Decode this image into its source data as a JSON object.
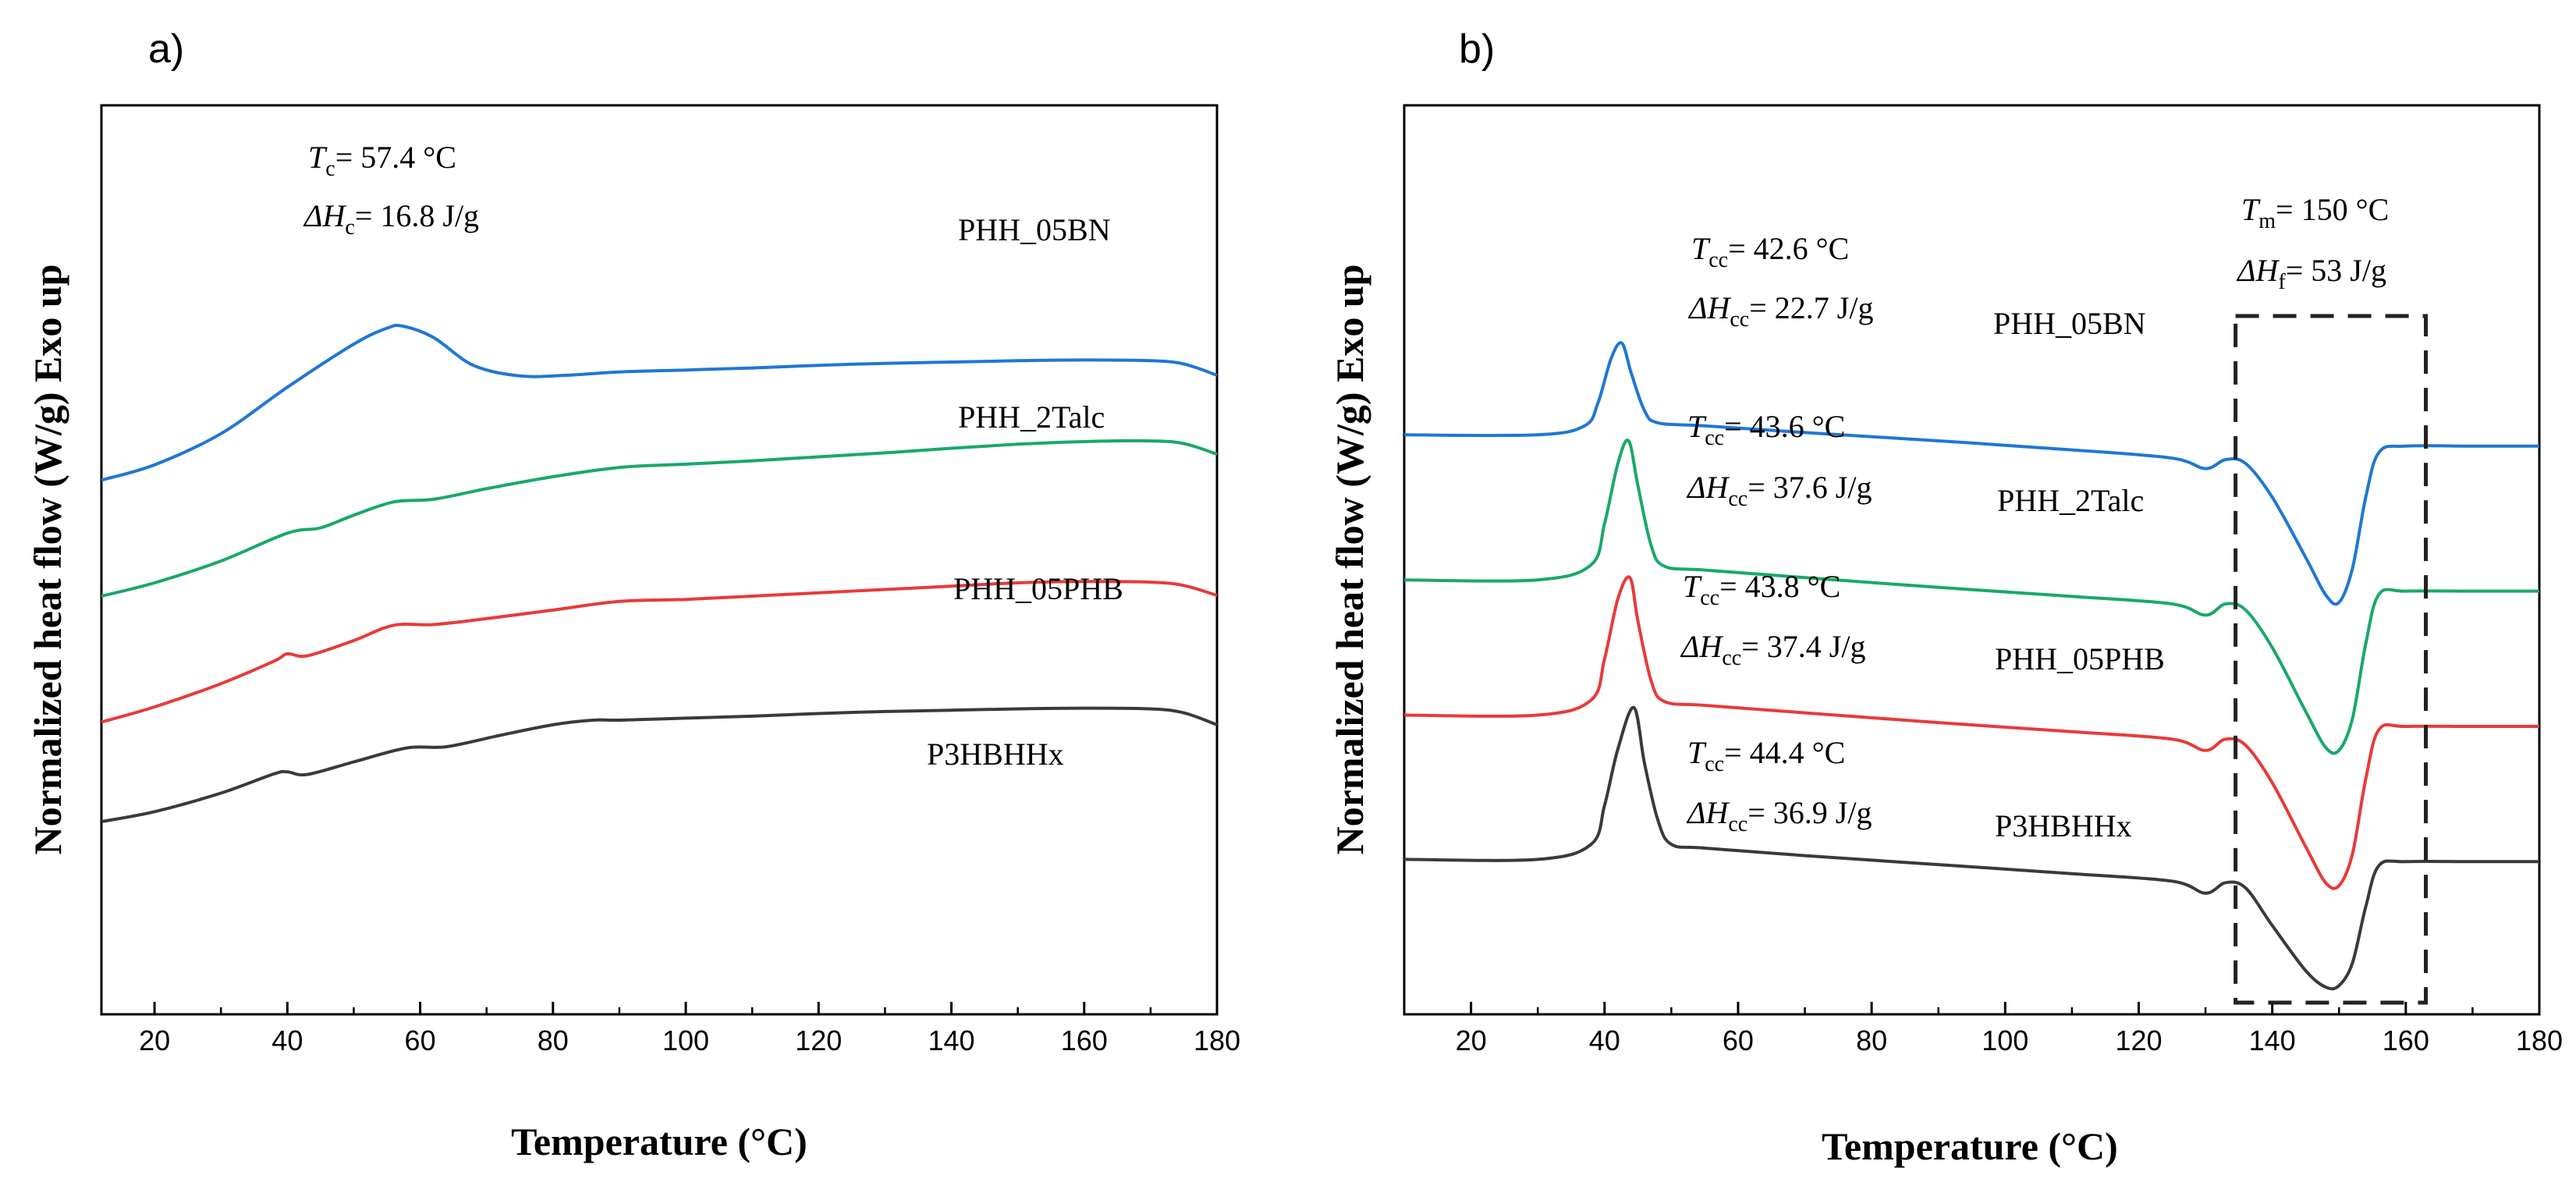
{
  "chart_data": [
    {
      "type": "line",
      "panel": "a)",
      "title": "",
      "xlabel": "Temperature (°C)",
      "ylabel": "Normalized heat flow (W/g) Exo up",
      "xlim": [
        12,
        180
      ],
      "ylim": [
        0,
        100
      ],
      "xticks": [
        20,
        40,
        60,
        80,
        100,
        120,
        140,
        160,
        180
      ],
      "xtick_labels": [
        "20",
        "40",
        "60",
        "80",
        "100",
        "120",
        "140",
        "160",
        "180"
      ],
      "y_ticks_shown": false,
      "grid": false,
      "series": [
        {
          "name": "PHH_05BN",
          "color": "#1f77d4",
          "x": [
            12,
            20,
            30,
            40,
            50,
            55,
            57.4,
            62,
            68,
            75,
            82,
            90,
            100,
            110,
            120,
            130,
            140,
            150,
            160,
            170,
            175,
            180
          ],
          "y": [
            63.5,
            65.8,
            70.5,
            77.5,
            84,
            86.4,
            86.7,
            85,
            80.8,
            79.2,
            79.3,
            79.8,
            80.1,
            80.4,
            80.8,
            81.1,
            81.3,
            81.5,
            81.6,
            81.5,
            81,
            79.3
          ]
        },
        {
          "name": "PHH_2Talc",
          "color": "#1aa86a",
          "x": [
            12,
            20,
            30,
            40,
            45,
            50,
            56,
            62,
            70,
            80,
            90,
            100,
            110,
            120,
            130,
            140,
            150,
            160,
            170,
            175,
            180
          ],
          "y": [
            46,
            48,
            51.3,
            55.5,
            56.3,
            58.2,
            60.2,
            60.6,
            62.2,
            64,
            65.4,
            65.9,
            66.4,
            67,
            67.6,
            68.3,
            68.9,
            69.3,
            69.4,
            69,
            67.4
          ]
        },
        {
          "name": "PHH_05PHB",
          "color": "#e83a3a",
          "x": [
            12,
            20,
            30,
            38,
            40,
            43,
            50,
            56,
            62,
            70,
            80,
            90,
            100,
            110,
            120,
            130,
            140,
            150,
            160,
            170,
            175,
            180
          ],
          "y": [
            27,
            29.3,
            32.8,
            36.2,
            37.3,
            37,
            39.3,
            41.6,
            41.7,
            42.6,
            43.9,
            45.2,
            45.5,
            46,
            46.5,
            47,
            47.5,
            48,
            48.2,
            48.1,
            47.6,
            46.1
          ]
        },
        {
          "name": "P3HBHHx",
          "color": "#3a3a3a",
          "x": [
            12,
            20,
            30,
            38,
            40,
            43,
            50,
            58,
            64,
            72,
            80,
            86,
            90,
            100,
            110,
            120,
            130,
            140,
            150,
            160,
            170,
            175,
            180
          ],
          "y": [
            12,
            13.5,
            16.3,
            19.2,
            19.5,
            19.1,
            21,
            23.1,
            23.3,
            25,
            26.6,
            27.3,
            27.3,
            27.6,
            27.9,
            28.3,
            28.6,
            28.8,
            29,
            29.1,
            29,
            28.4,
            26.6
          ]
        }
      ],
      "annotations": [
        {
          "symbol": "T",
          "sub": "c",
          "text": "= 57.4 °C"
        },
        {
          "symbol": "ΔH",
          "sub": "c",
          "text": "= 16.8 J/g"
        }
      ]
    },
    {
      "type": "line",
      "panel": "b)",
      "title": "",
      "xlabel": "Temperature (°C)",
      "ylabel": "Normalized heat flow (W/g) Exo up",
      "xlim": [
        10,
        180
      ],
      "ylim": [
        0,
        100
      ],
      "xticks": [
        20,
        40,
        60,
        80,
        100,
        120,
        140,
        160,
        180
      ],
      "xtick_labels": [
        "20",
        "40",
        "60",
        "80",
        "100",
        "120",
        "140",
        "160",
        "180"
      ],
      "y_ticks_shown": false,
      "grid": false,
      "series": [
        {
          "name": "PHH_05BN",
          "color": "#1f77d4",
          "x": [
            10,
            30,
            37,
            39,
            41,
            42.6,
            44,
            46,
            48,
            55,
            70,
            90,
            110,
            125,
            130,
            133,
            136,
            140,
            145,
            148,
            150,
            152,
            154,
            156,
            160,
            170,
            180
          ],
          "y": [
            73.8,
            73.8,
            75,
            78,
            84,
            86,
            82,
            77,
            75.4,
            75,
            74.1,
            73,
            71.8,
            70.7,
            69.3,
            70.5,
            70,
            65.5,
            57.5,
            52.5,
            51.5,
            56,
            65.5,
            71.5,
            72.3,
            72.3,
            72.3
          ]
        },
        {
          "name": "PHH_2Talc",
          "color": "#1aa86a",
          "x": [
            10,
            30,
            38,
            40,
            42,
            43.6,
            45,
            47,
            49,
            55,
            70,
            90,
            110,
            125,
            130,
            133,
            136,
            140,
            145,
            148,
            150,
            152,
            154,
            156,
            160,
            170,
            180
          ],
          "y": [
            54.5,
            54.5,
            56.5,
            62,
            70,
            73,
            67,
            59,
            56.3,
            55.8,
            54.8,
            53.5,
            52.3,
            51.3,
            49.8,
            51.3,
            50.5,
            45.5,
            37,
            32.2,
            31.8,
            36,
            46,
            52.6,
            53,
            53,
            53
          ]
        },
        {
          "name": "PHH_05PHB",
          "color": "#e83a3a",
          "x": [
            10,
            30,
            38,
            40,
            42,
            43.8,
            45,
            47,
            49,
            55,
            70,
            90,
            110,
            125,
            130,
            133,
            136,
            140,
            145,
            148,
            150,
            152,
            154,
            156,
            160,
            170,
            180
          ],
          "y": [
            36.5,
            36.5,
            38.5,
            44,
            52,
            54.8,
            49,
            41,
            38.3,
            37.8,
            36.8,
            35.5,
            34.3,
            33.3,
            31.8,
            33.3,
            32.5,
            27.5,
            19,
            14.2,
            13.8,
            18,
            28,
            34.6,
            35,
            35,
            35
          ]
        },
        {
          "name": "P3HBHHx",
          "color": "#3a3a3a",
          "x": [
            10,
            30,
            38,
            40,
            42,
            44.4,
            46,
            48,
            50,
            55,
            70,
            90,
            110,
            125,
            130,
            133,
            136,
            140,
            145,
            148,
            150,
            152,
            154,
            156,
            160,
            170,
            180
          ],
          "y": [
            17.3,
            17.3,
            19.3,
            24.5,
            32,
            37.5,
            30,
            22.5,
            19.3,
            18.8,
            17.8,
            16.6,
            15.4,
            14.4,
            12.8,
            14.2,
            13.5,
            8.5,
            2.5,
            0.3,
            0.5,
            3.5,
            11,
            16.5,
            17,
            17,
            17
          ]
        }
      ],
      "annotations": [
        {
          "symbol": "T",
          "sub": "cc",
          "text": "= 42.6 °C"
        },
        {
          "symbol": "ΔH",
          "sub": "cc",
          "text": "= 22.7 J/g"
        },
        {
          "symbol": "T",
          "sub": "cc",
          "text": "= 43.6 °C"
        },
        {
          "symbol": "ΔH",
          "sub": "cc",
          "text": "= 37.6 J/g"
        },
        {
          "symbol": "T",
          "sub": "cc",
          "text": "= 43.8 °C"
        },
        {
          "symbol": "ΔH",
          "sub": "cc",
          "text": "= 37.4 J/g"
        },
        {
          "symbol": "T",
          "sub": "cc",
          "text": "= 44.4 °C"
        },
        {
          "symbol": "ΔH",
          "sub": "cc",
          "text": "= 36.9 J/g"
        },
        {
          "symbol": "T",
          "sub": "m",
          "text": "= 150 °C"
        },
        {
          "symbol": "ΔH",
          "sub": "f",
          "text": "= 53 J/g"
        }
      ],
      "highlight_box": {
        "x_range": [
          134.5,
          163
        ],
        "style": "dashed"
      }
    }
  ]
}
